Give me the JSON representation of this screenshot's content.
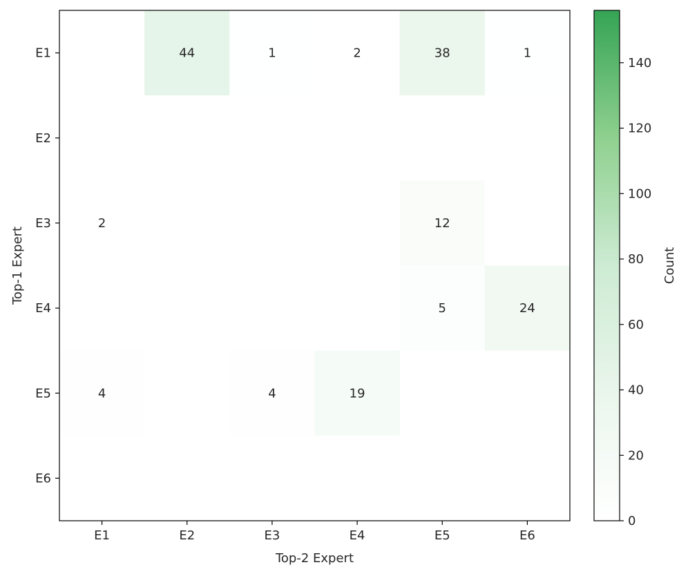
{
  "chart_data": {
    "type": "heatmap",
    "x_categories": [
      "E1",
      "E2",
      "E3",
      "E4",
      "E5",
      "E6"
    ],
    "y_categories": [
      "E1",
      "E2",
      "E3",
      "E4",
      "E5",
      "E6"
    ],
    "xlabel": "Top-2 Expert",
    "ylabel": "Top-1 Expert",
    "values": [
      [
        0,
        44,
        1,
        2,
        38,
        1
      ],
      [
        0,
        0,
        0,
        0,
        0,
        0
      ],
      [
        2,
        0,
        0,
        0,
        12,
        0
      ],
      [
        0,
        0,
        0,
        0,
        5,
        24
      ],
      [
        4,
        0,
        4,
        19,
        0,
        0
      ],
      [
        0,
        0,
        0,
        0,
        0,
        0
      ]
    ],
    "annotate_nonzero_only": true,
    "colorbar": {
      "label": "Count",
      "range": [
        0,
        156
      ],
      "ticks": [
        0,
        20,
        40,
        60,
        80,
        100,
        120,
        140
      ],
      "colors": [
        "#ffffff",
        "#eaf6ec",
        "#cdebd3",
        "#8fd08f",
        "#35a454"
      ]
    }
  }
}
